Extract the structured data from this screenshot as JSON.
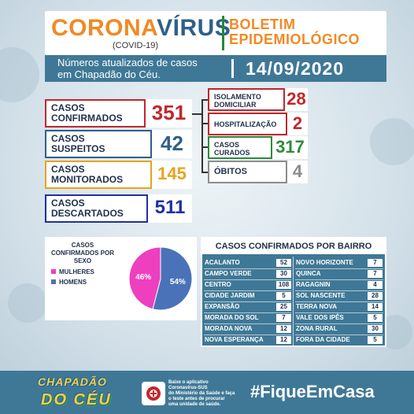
{
  "header": {
    "title_part1": "CORONA",
    "title_part2": "VÍRUS",
    "subtitle": "(COVID-19)",
    "boletim_line1": "BOLETIM",
    "boletim_line2": "EPIDEMIOLÓGICO"
  },
  "infobar": {
    "text_line1": "Números atualizados de casos",
    "text_line2": "em Chapadão do Céu.",
    "date": "14/09/2020"
  },
  "cases": {
    "confirmados": {
      "line1": "CASOS",
      "line2": "CONFIRMADOS",
      "value": "351"
    },
    "suspeitos": {
      "line1": "CASOS",
      "line2": "SUSPEITOS",
      "value": "42"
    },
    "monitorados": {
      "line1": "CASOS",
      "line2": "MONITORADOS",
      "value": "145"
    },
    "descartados": {
      "line1": "CASOS",
      "line2": "DESCARTADOS",
      "value": "511"
    },
    "isolamento": {
      "line1": "ISOLAMENTO",
      "line2": "DOMICILIAR",
      "value": "28"
    },
    "hospitalizacao": {
      "line1": "HOSPITALIZAÇÃO",
      "value": "2"
    },
    "curados": {
      "line1": "CASOS",
      "line2": "CURADOS",
      "value": "317"
    },
    "obitos": {
      "line1": "ÓBITOS",
      "value": "4"
    }
  },
  "colors": {
    "red": "#c0272d",
    "blue": "#2e5f8a",
    "yellow": "#e8a31c",
    "navy": "#1d2fa8",
    "green": "#2e8b3a",
    "gray": "#8c8c8c",
    "pink": "#ee3fbf",
    "steel": "#4a72b8"
  },
  "chart_data": {
    "type": "pie",
    "title": "CASOS CONFIRMADOS POR SEXO",
    "slices": [
      {
        "name": "MULHERES",
        "value": 46,
        "label": "46%",
        "color": "#ee3fbf"
      },
      {
        "name": "HOMENS",
        "value": 54,
        "label": "54%",
        "color": "#4a72b8"
      }
    ],
    "legend": "left"
  },
  "bairro": {
    "title": "CASOS CONFIRMADOS POR BAIRRO",
    "left": [
      {
        "name": "ACALANTO",
        "value": "52"
      },
      {
        "name": "CAMPO VERDE",
        "value": "30"
      },
      {
        "name": "CENTRO",
        "value": "108"
      },
      {
        "name": "CIDADE JARDIM",
        "value": "5"
      },
      {
        "name": "EXPANSÃO",
        "value": "25"
      },
      {
        "name": "MORADA DO SOL",
        "value": "7"
      },
      {
        "name": "MORADA NOVA",
        "value": "12"
      },
      {
        "name": "NOVA ESPERANÇA",
        "value": "12"
      }
    ],
    "right": [
      {
        "name": "NOVO HORIZONTE",
        "value": "7"
      },
      {
        "name": "QUINCA",
        "value": "7"
      },
      {
        "name": "RAGAGNIN",
        "value": "4"
      },
      {
        "name": "SOL NASCENTE",
        "value": "28"
      },
      {
        "name": "TERRA NOVA",
        "value": "14"
      },
      {
        "name": "VALE DOS IPÊS",
        "value": "5"
      },
      {
        "name": "ZONA RURAL",
        "value": "30"
      },
      {
        "name": "FORA DA CIDADE",
        "value": "5"
      }
    ]
  },
  "footer": {
    "logo_top": "CHAPADÃO",
    "logo_bottom": "DO CÉU",
    "app_line1": "Baixe o aplicativo",
    "app_line2": "Coronavírus-SUS",
    "app_line3": "do Ministério da Saúde e faça",
    "app_line4": "o teste antes de procurar",
    "app_line5": "uma unidade de saúde.",
    "hashtag": "#FiqueEmCasa"
  }
}
